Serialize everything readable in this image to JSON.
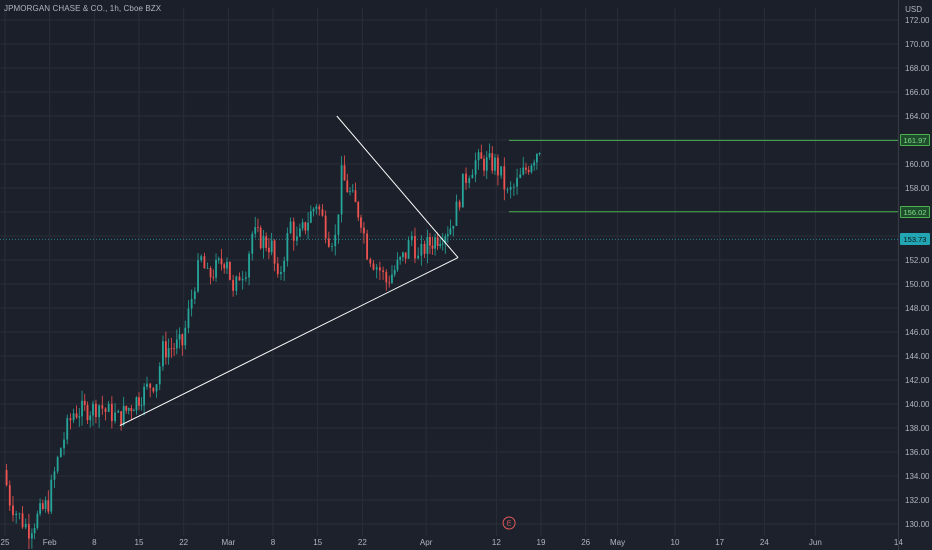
{
  "header": {
    "title": "JPMORGAN CHASE & CO., 1h, Cboe BZX",
    "currency": "USD"
  },
  "earnings_marker": "E",
  "colors": {
    "background": "#1c202a",
    "grid": "#2a2e39",
    "up": "#26a69a",
    "down": "#ef5350",
    "trendline": "#ffffff",
    "level": "#4caf50",
    "current_price": "#089981"
  },
  "chart_data": {
    "type": "candlestick",
    "title": "JPMORGAN CHASE & CO., 1h, Cboe BZX",
    "ylabel": "USD",
    "ylim": [
      129,
      173
    ],
    "x_ticks": [
      "25",
      "Feb",
      "8",
      "15",
      "22",
      "Mar",
      "8",
      "15",
      "22",
      "Apr",
      "12",
      "19",
      "26",
      "May",
      "10",
      "17",
      "24",
      "Jun",
      "14"
    ],
    "y_ticks": [
      130.0,
      132.0,
      134.0,
      136.0,
      138.0,
      140.0,
      142.0,
      144.0,
      146.0,
      148.0,
      150.0,
      152.0,
      154.0,
      156.0,
      158.0,
      160.0,
      162.0,
      164.0,
      166.0,
      168.0,
      170.0,
      172.0
    ],
    "grid": true,
    "price_series": [
      {
        "date": "Jan 25",
        "value": 134.5
      },
      {
        "date": "Jan 26",
        "value": 132.0
      },
      {
        "date": "Jan 27",
        "value": 131.0
      },
      {
        "date": "Jan 28",
        "value": 130.2
      },
      {
        "date": "Jan 29",
        "value": 129.6
      },
      {
        "date": "Feb 1",
        "value": 131.8
      },
      {
        "date": "Feb 2",
        "value": 134.2
      },
      {
        "date": "Feb 3",
        "value": 136.4
      },
      {
        "date": "Feb 4",
        "value": 138.0
      },
      {
        "date": "Feb 5",
        "value": 139.3
      },
      {
        "date": "Feb 8",
        "value": 139.6
      },
      {
        "date": "Feb 9",
        "value": 140.0
      },
      {
        "date": "Feb 10",
        "value": 139.4
      },
      {
        "date": "Feb 11",
        "value": 139.2
      },
      {
        "date": "Feb 12",
        "value": 138.8
      },
      {
        "date": "Feb 16",
        "value": 141.0
      },
      {
        "date": "Feb 17",
        "value": 141.6
      },
      {
        "date": "Feb 18",
        "value": 142.0
      },
      {
        "date": "Feb 19",
        "value": 144.5
      },
      {
        "date": "Feb 22",
        "value": 145.0
      },
      {
        "date": "Feb 23",
        "value": 147.5
      },
      {
        "date": "Feb 24",
        "value": 150.2
      },
      {
        "date": "Feb 25",
        "value": 152.0
      },
      {
        "date": "Feb 26",
        "value": 150.5
      },
      {
        "date": "Mar 1",
        "value": 152.3
      },
      {
        "date": "Mar 2",
        "value": 149.0
      },
      {
        "date": "Mar 3",
        "value": 150.8
      },
      {
        "date": "Mar 4",
        "value": 151.4
      },
      {
        "date": "Mar 5",
        "value": 154.2
      },
      {
        "date": "Mar 8",
        "value": 153.1
      },
      {
        "date": "Mar 9",
        "value": 150.0
      },
      {
        "date": "Mar 10",
        "value": 152.6
      },
      {
        "date": "Mar 11",
        "value": 155.0
      },
      {
        "date": "Mar 12",
        "value": 153.5
      },
      {
        "date": "Mar 15",
        "value": 156.8
      },
      {
        "date": "Mar 16",
        "value": 155.4
      },
      {
        "date": "Mar 17",
        "value": 154.0
      },
      {
        "date": "Mar 18",
        "value": 153.8
      },
      {
        "date": "Mar 19",
        "value": 159.0
      },
      {
        "date": "Mar 22",
        "value": 155.5
      },
      {
        "date": "Mar 23",
        "value": 152.8
      },
      {
        "date": "Mar 24",
        "value": 151.9
      },
      {
        "date": "Mar 25",
        "value": 151.2
      },
      {
        "date": "Mar 26",
        "value": 150.2
      },
      {
        "date": "Mar 29",
        "value": 152.5
      },
      {
        "date": "Mar 30",
        "value": 154.0
      },
      {
        "date": "Mar 31",
        "value": 152.0
      },
      {
        "date": "Apr 1",
        "value": 153.0
      },
      {
        "date": "Apr 5",
        "value": 154.8
      },
      {
        "date": "Apr 6",
        "value": 156.2
      },
      {
        "date": "Apr 7",
        "value": 158.3
      },
      {
        "date": "Apr 8",
        "value": 159.5
      },
      {
        "date": "Apr 9",
        "value": 160.2
      },
      {
        "date": "Apr 12",
        "value": 160.0
      },
      {
        "date": "Apr 13",
        "value": 159.0
      },
      {
        "date": "Apr 14",
        "value": 157.4
      },
      {
        "date": "Apr 15",
        "value": 158.0
      },
      {
        "date": "Apr 16",
        "value": 158.8
      },
      {
        "date": "Apr 19",
        "value": 161.5
      }
    ],
    "trendlines": [
      {
        "name": "triangle-upper",
        "from": {
          "date": "Mar 18",
          "value": 164.0
        },
        "to": {
          "date": "Apr 6",
          "value": 152.2
        }
      },
      {
        "name": "triangle-lower",
        "from": {
          "date": "Feb 12",
          "value": 138.2
        },
        "to": {
          "date": "Apr 6",
          "value": 152.2
        }
      }
    ],
    "levels": [
      {
        "name": "resistance",
        "value": 161.97,
        "from": "Apr 14"
      },
      {
        "name": "support",
        "value": 156.02,
        "from": "Apr 14"
      }
    ],
    "current_price": 153.73,
    "price_labels": [
      "161.97",
      "156.02",
      "153.73"
    ]
  }
}
